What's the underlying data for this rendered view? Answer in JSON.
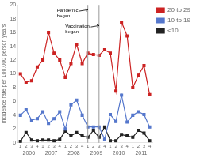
{
  "chart_data": {
    "type": "line",
    "y_label": "Incidence rate per 100,000 person years",
    "categories": [
      "1",
      "2",
      "3",
      "4",
      "1",
      "2",
      "3",
      "4",
      "1",
      "2",
      "3",
      "4",
      "1",
      "2",
      "3",
      "4",
      "1",
      "2",
      "3",
      "4",
      "1",
      "2",
      "3",
      "4"
    ],
    "year_labels": [
      "2006",
      "2007",
      "2008",
      "2009",
      "2010",
      "2011"
    ],
    "series": [
      {
        "name": "20 to 29",
        "color": "#cc2222",
        "values": [
          10.0,
          8.8,
          9.0,
          11.0,
          12.0,
          16.0,
          13.0,
          12.0,
          9.5,
          11.5,
          14.3,
          11.5,
          13.0,
          12.8,
          12.7,
          13.5,
          13.0,
          7.5,
          17.5,
          15.5,
          8.0,
          9.8,
          11.2,
          7.0
        ]
      },
      {
        "name": "10 to 19",
        "color": "#5577cc",
        "values": [
          4.0,
          4.8,
          3.3,
          3.5,
          4.5,
          2.8,
          3.5,
          4.5,
          2.0,
          5.5,
          6.2,
          4.0,
          2.3,
          2.3,
          2.3,
          0.5,
          4.1,
          3.1,
          6.9,
          3.0,
          4.0,
          4.5,
          4.1,
          2.3
        ]
      },
      {
        "name": "<10",
        "color": "#222222",
        "values": [
          0.2,
          1.5,
          0.4,
          0.3,
          0.4,
          0.4,
          0.3,
          0.5,
          1.7,
          1.0,
          1.5,
          1.0,
          0.8,
          1.8,
          0.8,
          2.3,
          0.3,
          0.3,
          1.2,
          1.0,
          0.8,
          1.8,
          1.4,
          0.3
        ]
      }
    ],
    "ylim": [
      0,
      20
    ],
    "yticks": [
      0,
      2,
      4,
      6,
      8,
      10,
      12,
      14,
      16,
      18,
      20
    ],
    "grid": false,
    "legend": "right",
    "marker": "square",
    "vlines": [
      {
        "x": 12,
        "color": "#999999"
      },
      {
        "x": 14,
        "color": "#999999"
      }
    ],
    "annotations": [
      {
        "text": "Pandemic\nbegan",
        "x": 12,
        "y": 19.3,
        "text_x": 6.5,
        "text_y": 19.5
      },
      {
        "text": "Vaccination\nbegan",
        "x": 14,
        "y": 17.0,
        "text_x": 8.0,
        "text_y": 17.2
      }
    ]
  }
}
